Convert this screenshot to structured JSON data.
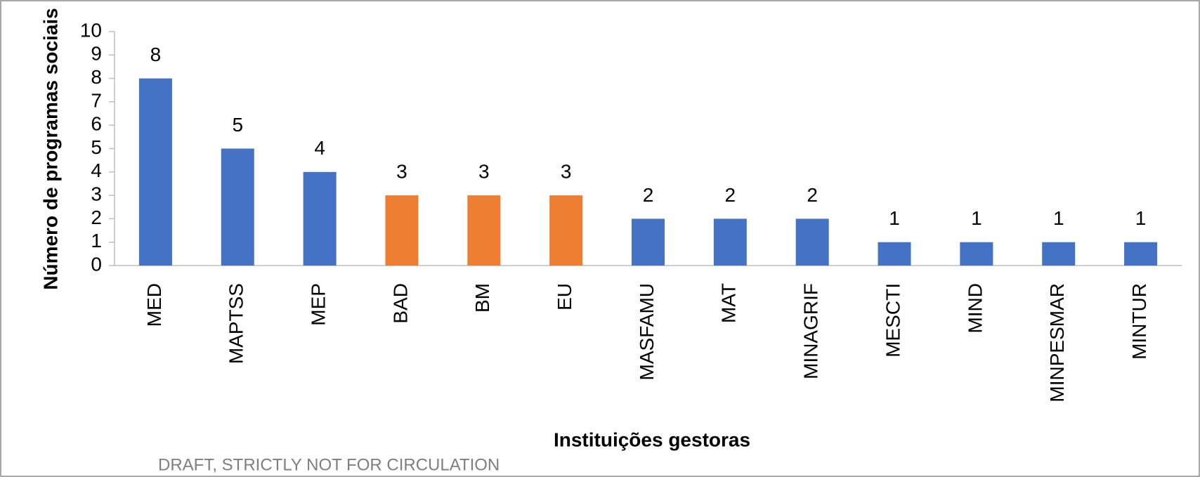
{
  "chart_data": {
    "type": "bar",
    "categories": [
      "MED",
      "MAPTSS",
      "MEP",
      "BAD",
      "BM",
      "EU",
      "MASFAMU",
      "MAT",
      "MINAGRIF",
      "MESCTI",
      "MIND",
      "MINPESMAR",
      "MINTUR"
    ],
    "values": [
      8,
      5,
      4,
      3,
      3,
      3,
      2,
      2,
      2,
      1,
      1,
      1,
      1
    ],
    "colors": [
      "#4472c4",
      "#4472c4",
      "#4472c4",
      "#ed7d31",
      "#ed7d31",
      "#ed7d31",
      "#4472c4",
      "#4472c4",
      "#4472c4",
      "#4472c4",
      "#4472c4",
      "#4472c4",
      "#4472c4"
    ],
    "ylim": [
      0,
      10
    ],
    "yticks": [
      0,
      1,
      2,
      3,
      4,
      5,
      6,
      7,
      8,
      9,
      10
    ],
    "grid": false,
    "xlabel": "Instituições gestoras",
    "ylabel": "Número de programas sociais",
    "annotation": "DRAFT, STRICTLY NOT FOR CIRCULATION"
  }
}
